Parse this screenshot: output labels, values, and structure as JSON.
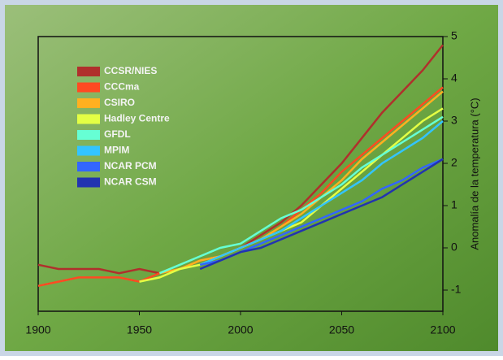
{
  "chart_data": {
    "type": "line",
    "y_label": "Anomalía de la temperatura (°C)",
    "x": [
      1900,
      1910,
      1920,
      1930,
      1940,
      1950,
      1960,
      1970,
      1980,
      1990,
      2000,
      2010,
      2020,
      2030,
      2040,
      2050,
      2060,
      2070,
      2080,
      2090,
      2100
    ],
    "xlim": [
      1900,
      2100
    ],
    "xticks": [
      1900,
      1950,
      2000,
      2050,
      2100
    ],
    "ylim": [
      -1.5,
      5
    ],
    "yticks": [
      -1,
      0,
      1,
      2,
      3,
      4,
      5
    ],
    "series": [
      {
        "name": "CCSR/NIES",
        "color": "#b0302c",
        "values": [
          -0.4,
          -0.5,
          -0.5,
          -0.5,
          -0.6,
          -0.5,
          -0.6,
          -0.5,
          -0.3,
          -0.2,
          0.0,
          0.3,
          0.6,
          1.0,
          1.5,
          2.0,
          2.6,
          3.2,
          3.7,
          4.2,
          4.8
        ]
      },
      {
        "name": "CCCma",
        "color": "#ff4a22",
        "values": [
          -0.9,
          -0.8,
          -0.7,
          -0.7,
          -0.7,
          -0.8,
          -0.6,
          -0.5,
          -0.3,
          -0.2,
          0.0,
          0.2,
          0.5,
          0.9,
          1.3,
          1.8,
          2.2,
          2.6,
          3.0,
          3.4,
          3.8
        ]
      },
      {
        "name": "CSIRO",
        "color": "#ffb020",
        "values": [
          null,
          null,
          null,
          null,
          null,
          null,
          -0.6,
          -0.5,
          -0.3,
          -0.2,
          0.0,
          0.2,
          0.5,
          0.8,
          1.2,
          1.6,
          2.1,
          2.5,
          2.9,
          3.3,
          3.7
        ]
      },
      {
        "name": "Hadley Centre",
        "color": "#e4ff44",
        "values": [
          null,
          null,
          null,
          null,
          null,
          -0.8,
          -0.7,
          -0.5,
          -0.4,
          -0.2,
          0.0,
          0.2,
          0.4,
          0.6,
          1.0,
          1.4,
          1.8,
          2.2,
          2.6,
          3.0,
          3.3
        ]
      },
      {
        "name": "GFDL",
        "color": "#66ffd4",
        "values": [
          null,
          null,
          null,
          null,
          null,
          null,
          -0.6,
          -0.4,
          -0.2,
          0.0,
          0.1,
          0.4,
          0.7,
          0.9,
          1.2,
          1.5,
          1.9,
          2.2,
          2.5,
          2.8,
          3.1
        ]
      },
      {
        "name": "MPIM",
        "color": "#33c4ff",
        "values": [
          null,
          null,
          null,
          null,
          null,
          null,
          null,
          null,
          -0.4,
          -0.2,
          0.0,
          0.2,
          0.4,
          0.7,
          1.0,
          1.3,
          1.6,
          2.0,
          2.3,
          2.6,
          3.0
        ]
      },
      {
        "name": "NCAR PCM",
        "color": "#3366ff",
        "values": [
          null,
          null,
          null,
          null,
          null,
          null,
          null,
          null,
          -0.4,
          -0.3,
          -0.1,
          0.1,
          0.3,
          0.5,
          0.7,
          0.9,
          1.1,
          1.4,
          1.6,
          1.9,
          2.1
        ]
      },
      {
        "name": "NCAR CSM",
        "color": "#2233b0",
        "values": [
          null,
          null,
          null,
          null,
          null,
          null,
          null,
          null,
          -0.5,
          -0.3,
          -0.1,
          0.0,
          0.2,
          0.4,
          0.6,
          0.8,
          1.0,
          1.2,
          1.5,
          1.8,
          2.1
        ]
      }
    ]
  }
}
